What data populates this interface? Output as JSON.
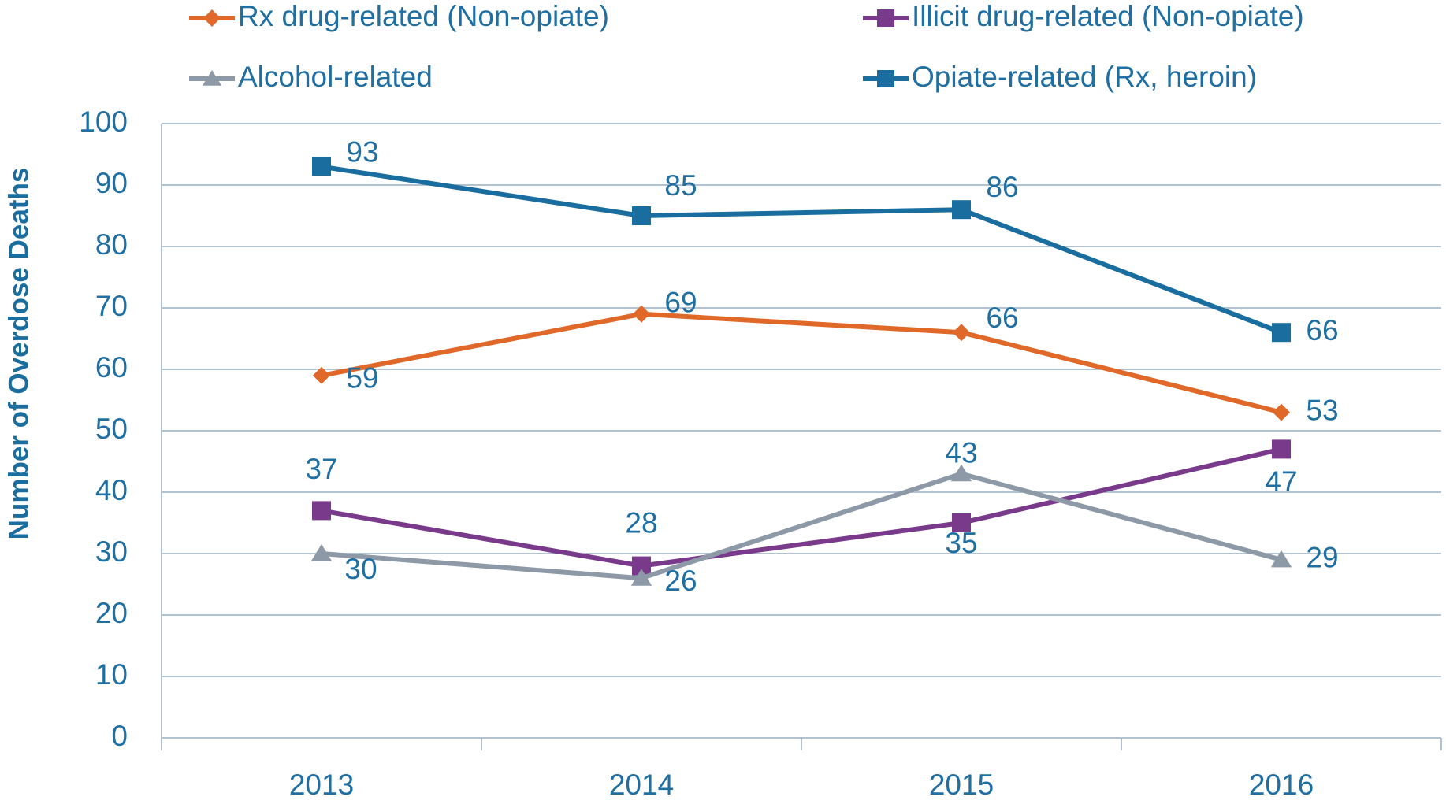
{
  "chart_data": {
    "type": "line",
    "y_label": "Number of Overdose Deaths",
    "categories": [
      "2013",
      "2014",
      "2015",
      "2016"
    ],
    "series": [
      {
        "name": "Rx drug-related (Non-opiate)",
        "color": "#e0692a",
        "marker": "diamond",
        "values": [
          59,
          69,
          66,
          53
        ]
      },
      {
        "name": "Illicit drug-related (Non-opiate)",
        "color": "#7a3a8c",
        "marker": "square",
        "values": [
          37,
          28,
          35,
          47
        ]
      },
      {
        "name": "Alcohol-related",
        "color": "#8d99a6",
        "marker": "triangle",
        "values": [
          30,
          26,
          43,
          29
        ]
      },
      {
        "name": "Opiate-related (Rx, heroin)",
        "color": "#1a6e9f",
        "marker": "square",
        "values": [
          93,
          85,
          86,
          66
        ]
      }
    ],
    "ylim": [
      0,
      100
    ],
    "yticks": [
      0,
      10,
      20,
      30,
      40,
      50,
      60,
      70,
      80,
      90,
      100
    ],
    "grid": true
  }
}
